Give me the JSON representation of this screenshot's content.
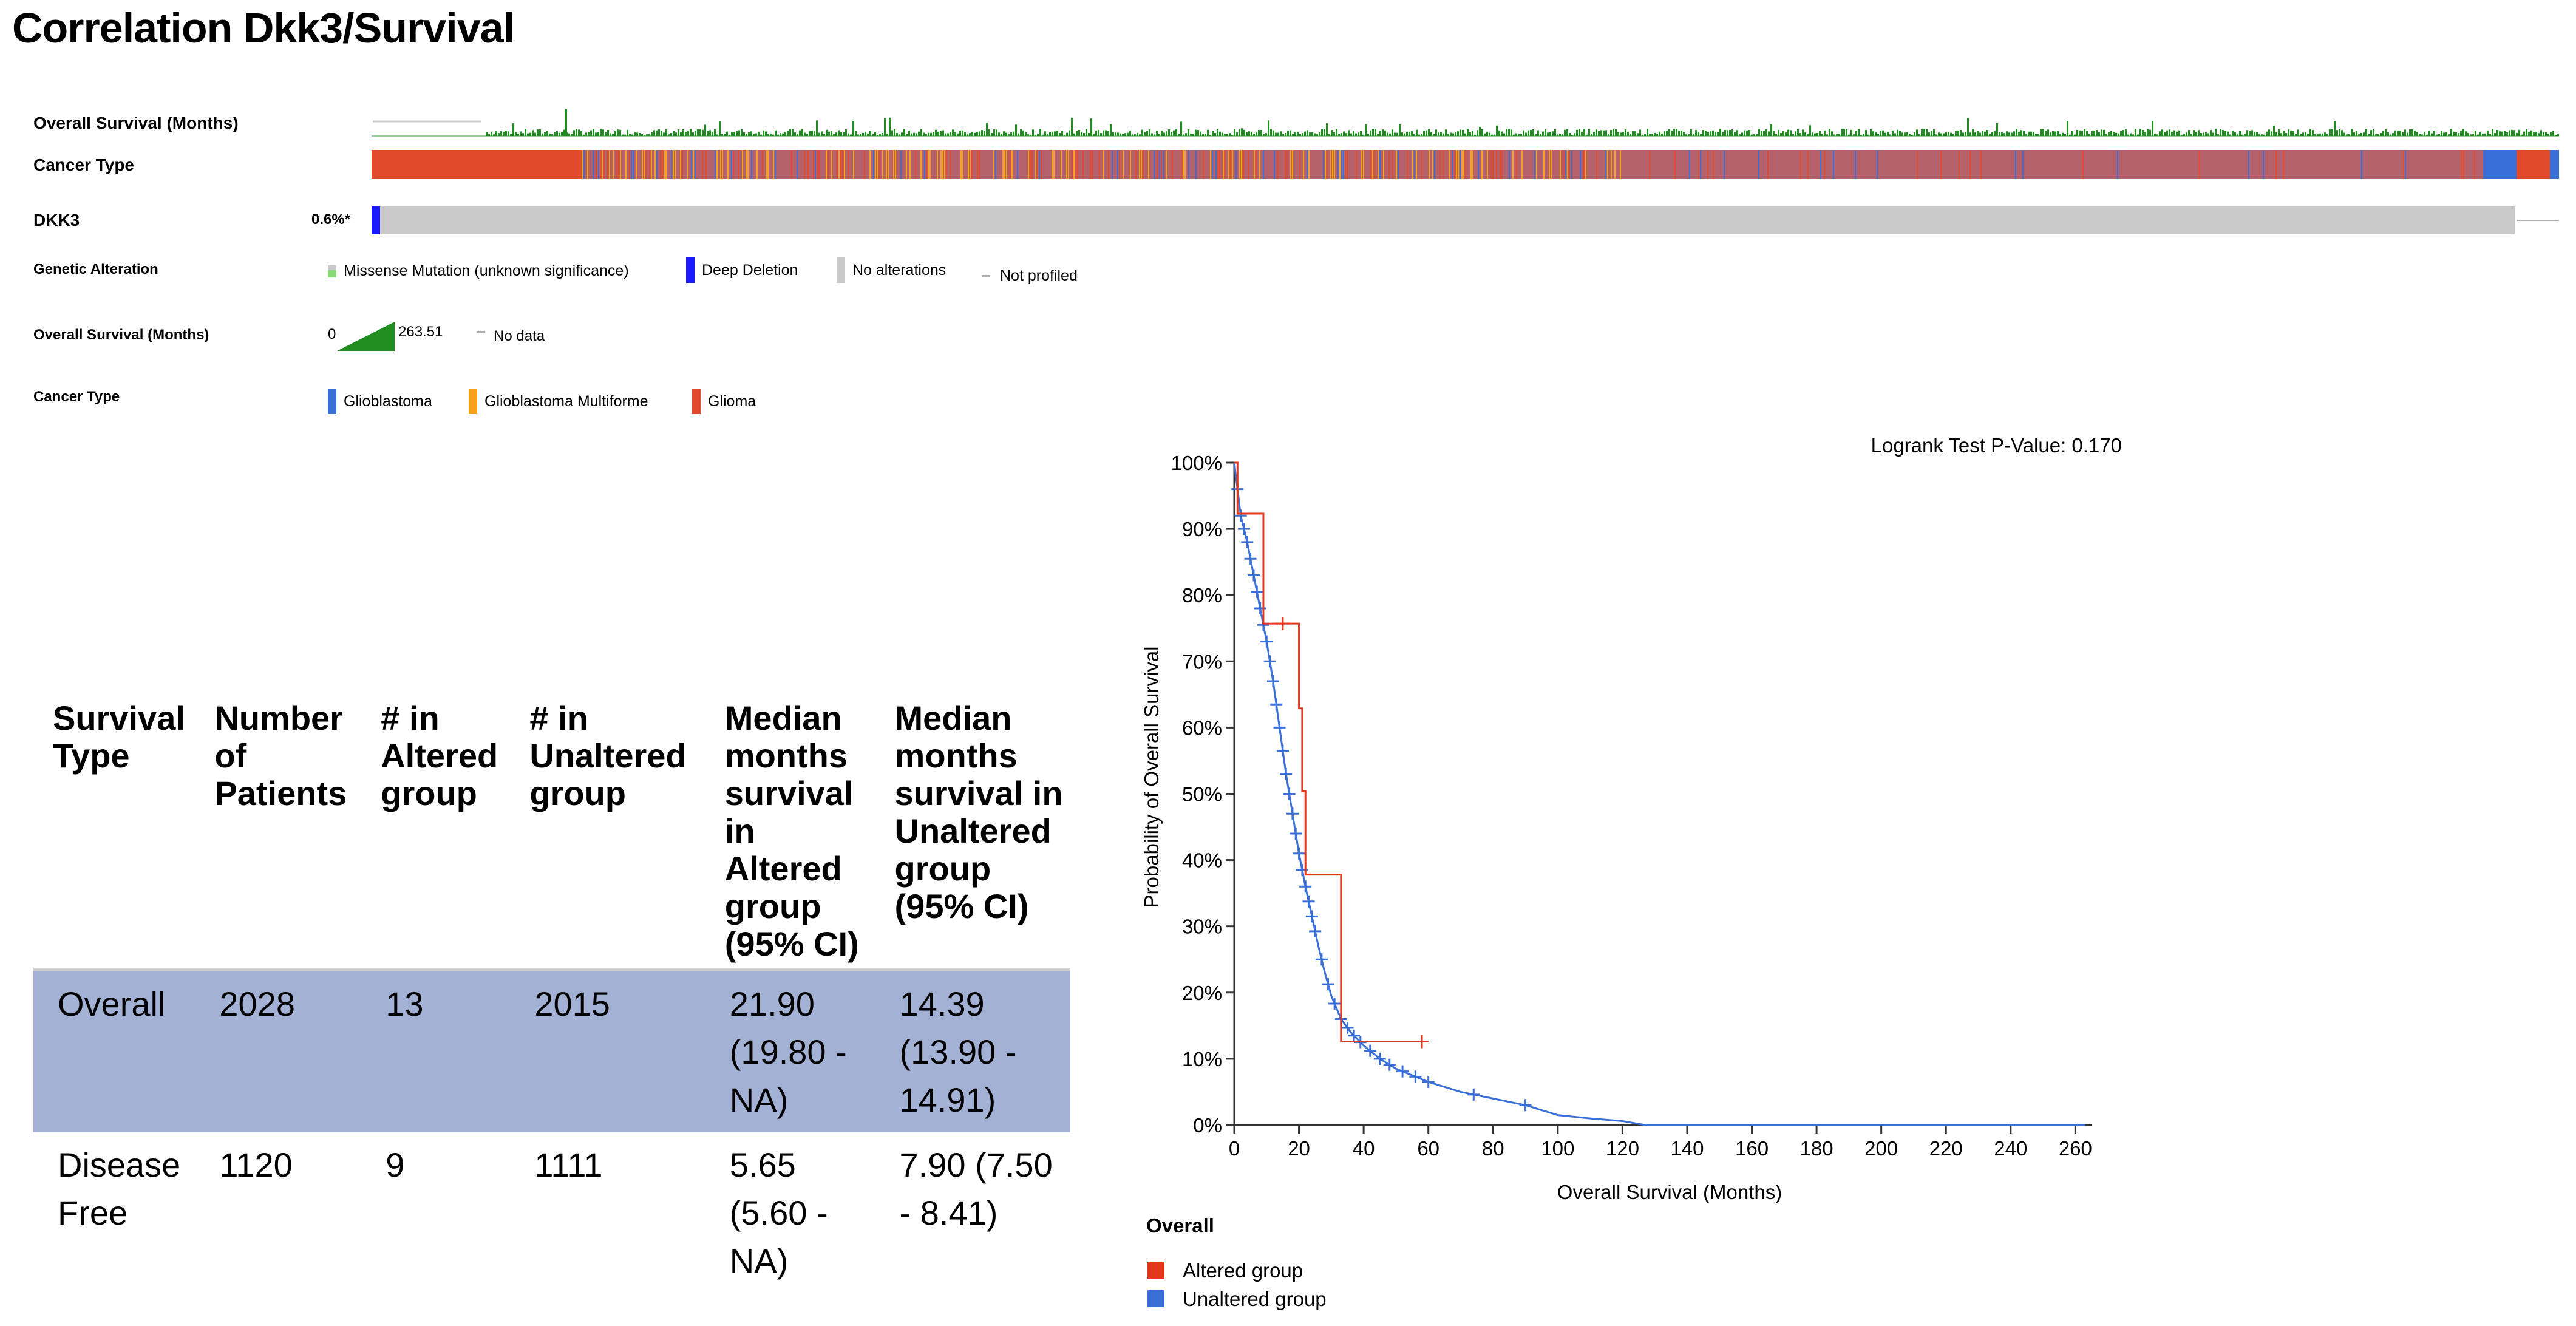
{
  "page_title": "Correlation Dkk3/Survival",
  "oncoprint": {
    "tracks": {
      "overall_survival": "Overall Survival (Months)",
      "cancer_type": "Cancer Type",
      "gene": "DKK3",
      "gene_pct": "0.6%*"
    },
    "legend": {
      "genetic_alteration": {
        "label": "Genetic Alteration",
        "items": [
          "Missense Mutation (unknown significance)",
          "Deep Deletion",
          "No alterations",
          "Not profiled"
        ]
      },
      "overall_survival": {
        "label": "Overall Survival (Months)",
        "min": "0",
        "max": "263.51",
        "no_data": "No data"
      },
      "cancer_type": {
        "label": "Cancer Type",
        "items": [
          "Glioblastoma",
          "Glioblastoma Multiforme",
          "Glioma"
        ]
      }
    },
    "colors": {
      "glioma": "#e14b2b",
      "glioblastoma": "#3a6fd8",
      "glioblastoma_multiforme": "#f5a21a",
      "mixed": "#b5616c",
      "deep_deletion": "#1a1aff",
      "missense": "#89d977",
      "no_alteration": "#c8c8c8",
      "survival_bar": "#1e8c1e"
    }
  },
  "table": {
    "headers": [
      "Survival Type",
      "Number of Patients",
      "# in Altered group",
      "# in Unaltered group",
      "Median months survival in Altered group (95% CI)",
      "Median months survival in Unaltered group (95% CI)"
    ],
    "rows": [
      [
        "Overall",
        "2028",
        "13",
        "2015",
        "21.90 (19.80 - NA)",
        "14.39 (13.90 - 14.91)"
      ],
      [
        "Disease Free",
        "1120",
        "9",
        "1111",
        "5.65 (5.60 - NA)",
        "7.90 (7.50 - 8.41)"
      ]
    ]
  },
  "chart_data": {
    "type": "line",
    "title": "",
    "annotation": "Logrank Test P-Value: 0.170",
    "xlabel": "Overall Survival (Months)",
    "ylabel": "Probability of Overall Survival",
    "xlim": [
      0,
      265
    ],
    "ylim": [
      0,
      100
    ],
    "xticks": [
      "0",
      "20",
      "40",
      "60",
      "80",
      "100",
      "120",
      "140",
      "160",
      "180",
      "200",
      "220",
      "240",
      "260"
    ],
    "yticks": [
      "0%",
      "10%",
      "20%",
      "30%",
      "40%",
      "50%",
      "60%",
      "70%",
      "80%",
      "90%",
      "100%"
    ],
    "grid": false,
    "legend_title": "Overall",
    "legend_position": "bottom-left",
    "series": [
      {
        "name": "Altered group",
        "color": "#e3371e",
        "step": true,
        "x": [
          0,
          1,
          9,
          20,
          21,
          22,
          33,
          58
        ],
        "y": [
          100,
          92.3,
          75.7,
          62.9,
          50.4,
          37.8,
          12.6,
          12.6
        ],
        "censored": [
          [
            15,
            75.7
          ],
          [
            58,
            12.6
          ]
        ]
      },
      {
        "name": "Unaltered group",
        "color": "#3a6fd8",
        "step": false,
        "x": [
          0,
          1,
          2,
          4,
          6,
          8,
          10,
          12,
          14,
          16,
          18,
          20,
          22,
          24,
          26,
          28,
          30,
          33,
          36,
          40,
          45,
          50,
          55,
          60,
          70,
          80,
          90,
          100,
          110,
          120,
          127,
          140,
          160,
          200,
          240,
          263
        ],
        "y": [
          100,
          96,
          92,
          88,
          83,
          78,
          73,
          67,
          60,
          53,
          47,
          41,
          36,
          31.5,
          27,
          23,
          19.5,
          16,
          14,
          12,
          10,
          8.5,
          7.5,
          6.5,
          5,
          4,
          3,
          1.5,
          1,
          0.6,
          0,
          0,
          0,
          0,
          0,
          0
        ],
        "censored_x": [
          1,
          2,
          3,
          4,
          5,
          6,
          7,
          8,
          9,
          10,
          11,
          12,
          13,
          14,
          15,
          16,
          17,
          18,
          19,
          20,
          21,
          22,
          23,
          24,
          25,
          27,
          29,
          31,
          33,
          35,
          37,
          39,
          42,
          45,
          48,
          52,
          56,
          60,
          74,
          90
        ]
      }
    ]
  }
}
